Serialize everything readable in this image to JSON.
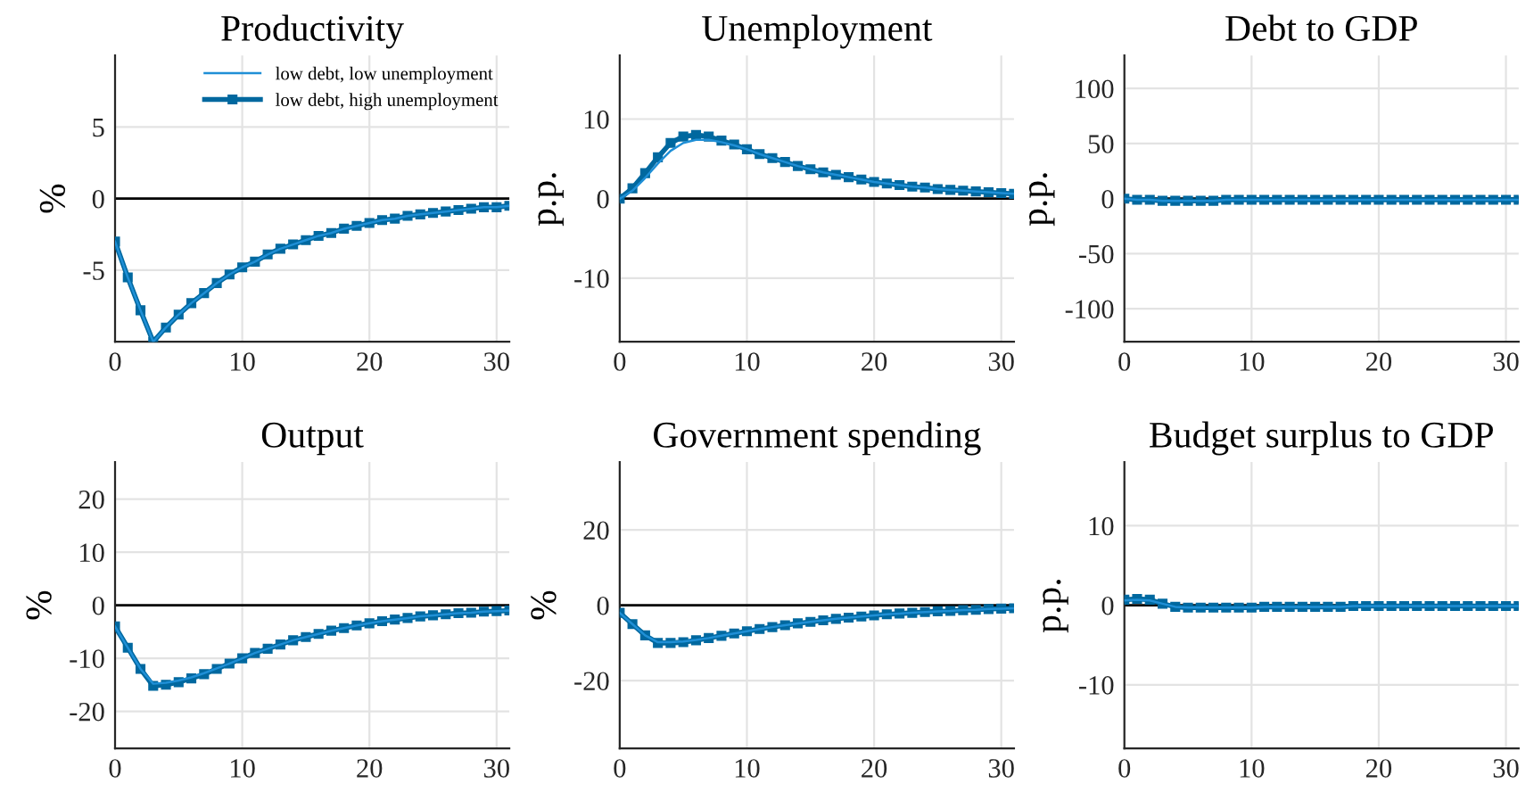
{
  "chart_data": [
    {
      "type": "line",
      "title": "Productivity",
      "ylabel": "%",
      "x": [
        0,
        1,
        2,
        3,
        4,
        5,
        6,
        7,
        8,
        9,
        10,
        11,
        12,
        13,
        14,
        15,
        16,
        17,
        18,
        19,
        20,
        21,
        22,
        23,
        24,
        25,
        26,
        27,
        28,
        29,
        30,
        31
      ],
      "xlim": [
        0,
        31
      ],
      "xticks": [
        0,
        10,
        20,
        30
      ],
      "ylim": [
        -10,
        10
      ],
      "yticks": [
        -5,
        0,
        5
      ],
      "grid": true,
      "legend": "top right",
      "ref_lines": [
        {
          "axis": "y",
          "value": 0,
          "color": "#000000"
        }
      ],
      "series": [
        {
          "name": "low debt, low unemployment",
          "color": "#1f8fd6",
          "marker": "none",
          "values": [
            -3,
            -5.5,
            -7.8,
            -10,
            -9,
            -8.1,
            -7.3,
            -6.6,
            -5.9,
            -5.3,
            -4.8,
            -4.4,
            -3.9,
            -3.5,
            -3.2,
            -2.9,
            -2.6,
            -2.4,
            -2.1,
            -1.9,
            -1.7,
            -1.5,
            -1.4,
            -1.2,
            -1.1,
            -1,
            -0.9,
            -0.8,
            -0.7,
            -0.6,
            -0.6,
            -0.5
          ]
        },
        {
          "name": "low debt, high unemployment",
          "color": "#00689f",
          "marker": "square",
          "values": [
            -3,
            -5.5,
            -7.8,
            -10,
            -9,
            -8.1,
            -7.3,
            -6.6,
            -5.9,
            -5.3,
            -4.8,
            -4.4,
            -3.9,
            -3.5,
            -3.2,
            -2.9,
            -2.6,
            -2.4,
            -2.1,
            -1.9,
            -1.7,
            -1.5,
            -1.4,
            -1.2,
            -1.1,
            -1,
            -0.9,
            -0.8,
            -0.7,
            -0.6,
            -0.6,
            -0.5
          ]
        }
      ]
    },
    {
      "type": "line",
      "title": "Unemployment",
      "ylabel": "p.p.",
      "x": [
        0,
        1,
        2,
        3,
        4,
        5,
        6,
        7,
        8,
        9,
        10,
        11,
        12,
        13,
        14,
        15,
        16,
        17,
        18,
        19,
        20,
        21,
        22,
        23,
        24,
        25,
        26,
        27,
        28,
        29,
        30,
        31
      ],
      "xlim": [
        0,
        31
      ],
      "xticks": [
        0,
        10,
        20,
        30
      ],
      "ylim": [
        -18,
        18
      ],
      "yticks": [
        -10,
        0,
        10
      ],
      "grid": true,
      "ref_lines": [
        {
          "axis": "y",
          "value": 0,
          "color": "#000000"
        }
      ],
      "series": [
        {
          "color": "#1f8fd6",
          "marker": "none",
          "values": [
            0,
            1,
            2.6,
            4.4,
            6,
            7,
            7.4,
            7.4,
            7.1,
            6.7,
            6.2,
            5.6,
            5.1,
            4.6,
            4.1,
            3.7,
            3.3,
            3,
            2.7,
            2.4,
            2.1,
            1.9,
            1.7,
            1.5,
            1.4,
            1.2,
            1.1,
            1,
            0.9,
            0.8,
            0.7,
            0.6
          ]
        },
        {
          "color": "#00689f",
          "marker": "square",
          "values": [
            0,
            1.3,
            3.2,
            5.2,
            7,
            7.8,
            8,
            7.8,
            7.3,
            6.8,
            6.2,
            5.6,
            5.1,
            4.6,
            4.1,
            3.7,
            3.3,
            3,
            2.7,
            2.4,
            2.1,
            1.9,
            1.7,
            1.5,
            1.4,
            1.2,
            1.1,
            1,
            0.9,
            0.8,
            0.7,
            0.6
          ]
        }
      ]
    },
    {
      "type": "line",
      "title": "Debt to GDP",
      "ylabel": "p.p.",
      "x": [
        0,
        1,
        2,
        3,
        4,
        5,
        6,
        7,
        8,
        9,
        10,
        11,
        12,
        13,
        14,
        15,
        16,
        17,
        18,
        19,
        20,
        21,
        22,
        23,
        24,
        25,
        26,
        27,
        28,
        29,
        30,
        31
      ],
      "xlim": [
        0,
        31
      ],
      "xticks": [
        0,
        10,
        20,
        30
      ],
      "ylim": [
        -130,
        130
      ],
      "yticks": [
        -100,
        -50,
        0,
        50,
        100
      ],
      "grid": true,
      "ref_lines": [
        {
          "axis": "y",
          "value": 0,
          "color": "#000000"
        }
      ],
      "series": [
        {
          "color": "#1f8fd6",
          "marker": "none",
          "values": [
            0,
            -1,
            -1,
            -2,
            -2,
            -2,
            -2,
            -2,
            -1,
            -1,
            -1,
            -1,
            -1,
            -1,
            -1,
            -1,
            -1,
            -1,
            -1,
            -1,
            -1,
            -1,
            -1,
            -1,
            -1,
            -1,
            -1,
            -1,
            -1,
            -1,
            -1,
            -1
          ]
        },
        {
          "color": "#00689f",
          "marker": "square",
          "values": [
            0,
            -1,
            -1,
            -2,
            -2,
            -2,
            -2,
            -2,
            -1,
            -1,
            -1,
            -1,
            -1,
            -1,
            -1,
            -1,
            -1,
            -1,
            -1,
            -1,
            -1,
            -1,
            -1,
            -1,
            -1,
            -1,
            -1,
            -1,
            -1,
            -1,
            -1,
            -1
          ]
        }
      ]
    },
    {
      "type": "line",
      "title": "Output",
      "ylabel": "%",
      "x": [
        0,
        1,
        2,
        3,
        4,
        5,
        6,
        7,
        8,
        9,
        10,
        11,
        12,
        13,
        14,
        15,
        16,
        17,
        18,
        19,
        20,
        21,
        22,
        23,
        24,
        25,
        26,
        27,
        28,
        29,
        30,
        31
      ],
      "xlim": [
        0,
        31
      ],
      "xticks": [
        0,
        10,
        20,
        30
      ],
      "ylim": [
        -27,
        27
      ],
      "yticks": [
        -20,
        -10,
        0,
        10,
        20
      ],
      "grid": true,
      "ref_lines": [
        {
          "axis": "y",
          "value": 0,
          "color": "#000000"
        }
      ],
      "series": [
        {
          "color": "#1f8fd6",
          "marker": "none",
          "values": [
            -4,
            -8,
            -12,
            -14.8,
            -14.6,
            -14.2,
            -13.6,
            -12.8,
            -11.9,
            -11,
            -10,
            -9,
            -8.2,
            -7.4,
            -6.6,
            -6,
            -5.4,
            -4.8,
            -4.3,
            -3.8,
            -3.4,
            -3,
            -2.7,
            -2.4,
            -2.1,
            -1.9,
            -1.7,
            -1.5,
            -1.4,
            -1.2,
            -1.1,
            -1
          ]
        },
        {
          "color": "#00689f",
          "marker": "square",
          "values": [
            -4,
            -8,
            -12,
            -15.2,
            -15,
            -14.5,
            -13.8,
            -13,
            -12,
            -11,
            -10,
            -9,
            -8.2,
            -7.4,
            -6.6,
            -6,
            -5.4,
            -4.8,
            -4.3,
            -3.8,
            -3.4,
            -3,
            -2.7,
            -2.4,
            -2.1,
            -1.9,
            -1.7,
            -1.5,
            -1.4,
            -1.2,
            -1.1,
            -1
          ]
        }
      ]
    },
    {
      "type": "line",
      "title": "Government spending",
      "ylabel": "%",
      "x": [
        0,
        1,
        2,
        3,
        4,
        5,
        6,
        7,
        8,
        9,
        10,
        11,
        12,
        13,
        14,
        15,
        16,
        17,
        18,
        19,
        20,
        21,
        22,
        23,
        24,
        25,
        26,
        27,
        28,
        29,
        30,
        31
      ],
      "xlim": [
        0,
        31
      ],
      "xticks": [
        0,
        10,
        20,
        30
      ],
      "ylim": [
        -38,
        38
      ],
      "yticks": [
        -20,
        0,
        20
      ],
      "grid": true,
      "ref_lines": [
        {
          "axis": "y",
          "value": 0,
          "color": "#000000"
        }
      ],
      "series": [
        {
          "color": "#1f8fd6",
          "marker": "none",
          "values": [
            -2,
            -5,
            -8,
            -9.8,
            -9.8,
            -9.6,
            -9.2,
            -8.7,
            -8.1,
            -7.5,
            -6.9,
            -6.3,
            -5.8,
            -5.3,
            -4.8,
            -4.4,
            -4,
            -3.6,
            -3.3,
            -3,
            -2.7,
            -2.4,
            -2.2,
            -2,
            -1.8,
            -1.6,
            -1.5,
            -1.3,
            -1.2,
            -1,
            -0.9,
            -0.8
          ]
        },
        {
          "color": "#00689f",
          "marker": "square",
          "values": [
            -2,
            -5,
            -8,
            -10,
            -10,
            -9.8,
            -9.3,
            -8.7,
            -8.1,
            -7.5,
            -6.9,
            -6.3,
            -5.8,
            -5.3,
            -4.8,
            -4.4,
            -4,
            -3.6,
            -3.3,
            -3,
            -2.7,
            -2.4,
            -2.2,
            -2,
            -1.8,
            -1.6,
            -1.5,
            -1.3,
            -1.2,
            -1,
            -0.9,
            -0.8
          ]
        }
      ]
    },
    {
      "type": "line",
      "title": "Budget surplus to GDP",
      "ylabel": "p.p.",
      "x": [
        0,
        1,
        2,
        3,
        4,
        5,
        6,
        7,
        8,
        9,
        10,
        11,
        12,
        13,
        14,
        15,
        16,
        17,
        18,
        19,
        20,
        21,
        22,
        23,
        24,
        25,
        26,
        27,
        28,
        29,
        30,
        31
      ],
      "xlim": [
        0,
        31
      ],
      "xticks": [
        0,
        10,
        20,
        30
      ],
      "ylim": [
        -18,
        18
      ],
      "yticks": [
        -10,
        0,
        10
      ],
      "grid": true,
      "ref_lines": [
        {
          "axis": "y",
          "value": 0,
          "color": "#000000"
        }
      ],
      "series": [
        {
          "color": "#1f8fd6",
          "marker": "none",
          "values": [
            0.6,
            0.7,
            0.6,
            0.2,
            -0.2,
            -0.3,
            -0.3,
            -0.3,
            -0.3,
            -0.3,
            -0.3,
            -0.2,
            -0.2,
            -0.2,
            -0.2,
            -0.2,
            -0.2,
            -0.2,
            -0.1,
            -0.1,
            -0.1,
            -0.1,
            -0.1,
            -0.1,
            -0.1,
            -0.1,
            -0.1,
            -0.1,
            -0.1,
            -0.1,
            -0.1,
            -0.1
          ]
        },
        {
          "color": "#00689f",
          "marker": "square",
          "values": [
            0.7,
            0.8,
            0.7,
            0.2,
            -0.2,
            -0.3,
            -0.3,
            -0.3,
            -0.3,
            -0.3,
            -0.3,
            -0.2,
            -0.2,
            -0.2,
            -0.2,
            -0.2,
            -0.2,
            -0.2,
            -0.1,
            -0.1,
            -0.1,
            -0.1,
            -0.1,
            -0.1,
            -0.1,
            -0.1,
            -0.1,
            -0.1,
            -0.1,
            -0.1,
            -0.1,
            -0.1
          ]
        }
      ]
    }
  ]
}
